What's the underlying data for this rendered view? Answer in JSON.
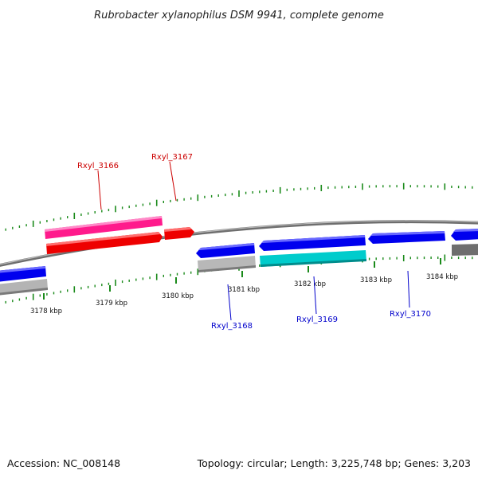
{
  "title": "Rubrobacter xylanophilus DSM 9941, complete genome",
  "footer": {
    "accession": "Accession: NC_008148",
    "summary": "Topology: circular; Length: 3,225,748 bp; Genes: 3,203"
  },
  "colors": {
    "plus_tick": "#1a8a1a",
    "minus_tick": "#1a8a1a",
    "backbone": "#808080",
    "label_plus": "#cc0000",
    "label_minus": "#0000cc"
  },
  "scale": {
    "kbp_labels": [
      {
        "kbp": 3178,
        "text": "3178 kbp"
      },
      {
        "kbp": 3179,
        "text": "3179 kbp"
      },
      {
        "kbp": 3180,
        "text": "3180 kbp"
      },
      {
        "kbp": 3181,
        "text": "3181 kbp"
      },
      {
        "kbp": 3182,
        "text": "3182 kbp"
      },
      {
        "kbp": 3183,
        "text": "3183 kbp"
      },
      {
        "kbp": 3184,
        "text": "3184 kbp"
      }
    ]
  },
  "genes": [
    {
      "id": "Rxyl_3166",
      "label": "Rxyl_3166",
      "strand": "+",
      "color": "#ff1493",
      "kind": "CDS-upper"
    },
    {
      "id": "Rxyl_3166_cds",
      "label": "",
      "strand": "+",
      "color": "#ff0000",
      "kind": "CDS"
    },
    {
      "id": "Rxyl_3167",
      "label": "Rxyl_3167",
      "strand": "+",
      "color": "#ff0000",
      "kind": "CDS"
    },
    {
      "id": "Rxyl_3165",
      "label": "",
      "strand": "-",
      "color": "#0000ff",
      "kind": "CDS"
    },
    {
      "id": "Rxyl_3165_gene",
      "label": "",
      "strand": "-",
      "color": "#b0b0b0",
      "kind": "gene"
    },
    {
      "id": "Rxyl_3168",
      "label": "Rxyl_3168",
      "strand": "-",
      "color": "#0000ff",
      "kind": "CDS"
    },
    {
      "id": "Rxyl_3168_gene",
      "label": "",
      "strand": "-",
      "color": "#b0b0b0",
      "kind": "gene"
    },
    {
      "id": "Rxyl_3169",
      "label": "Rxyl_3169",
      "strand": "-",
      "color": "#0000ff",
      "kind": "CDS"
    },
    {
      "id": "Rxyl_3169_gene",
      "label": "",
      "strand": "-",
      "color": "#00cccc",
      "kind": "gene"
    },
    {
      "id": "Rxyl_3170",
      "label": "Rxyl_3170",
      "strand": "-",
      "color": "#0000ff",
      "kind": "CDS"
    },
    {
      "id": "Rxyl_3171",
      "label": "",
      "strand": "-",
      "color": "#0000ff",
      "kind": "CDS"
    },
    {
      "id": "Rxyl_3171_gene",
      "label": "",
      "strand": "-",
      "color": "#707070",
      "kind": "gene"
    }
  ]
}
